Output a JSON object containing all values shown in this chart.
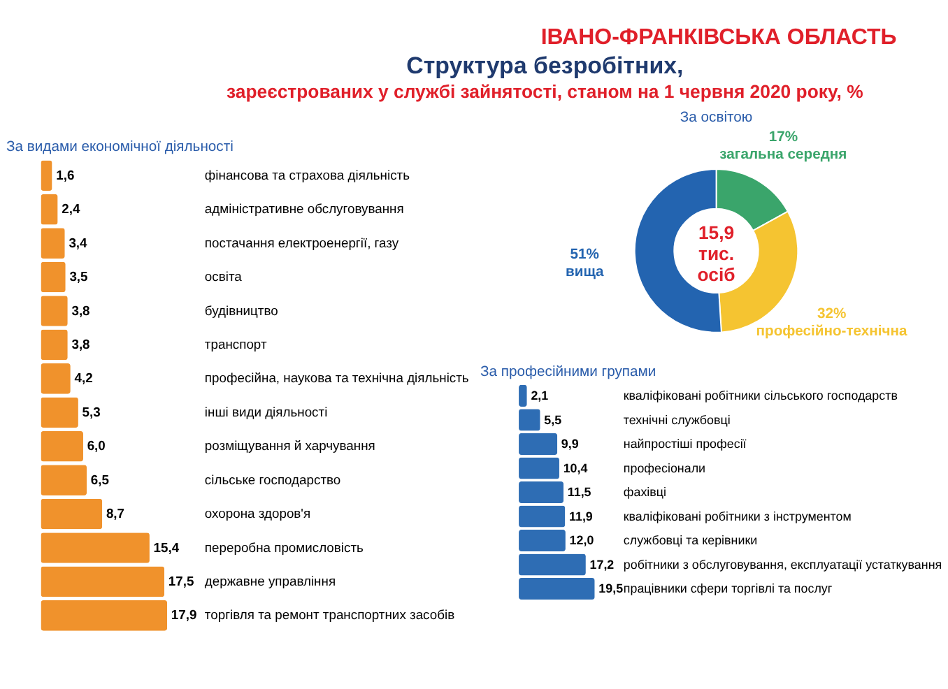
{
  "chart_data": [
    {
      "type": "other",
      "title": "Структура безробітних,",
      "subtitle": "зареєстрованих у службі зайнятості, станом на 1 червня 2020 року, %",
      "annotations": [
        "ІВАНО-ФРАНКІВСЬКА ОБЛАСТЬ"
      ]
    },
    {
      "type": "bar",
      "orientation": "horizontal",
      "title": "За видами економічної діяльності",
      "color": "#f0922c",
      "categories": [
        "фінансова та страхова діяльність",
        "адміністративне обслуговування",
        "постачання електроенергії, газу",
        "освіта",
        "будівництво",
        "транспорт",
        "професійна, наукова та технічна діяльність",
        "інші види діяльності",
        "розміщування й харчування",
        "сільське господарство",
        "охорона здоров'я",
        "переробна промисловість",
        "державне управління",
        "торгівля та ремонт транспортних засобів"
      ],
      "values": [
        1.6,
        2.4,
        3.4,
        3.5,
        3.8,
        3.8,
        4.2,
        5.3,
        6.0,
        6.5,
        8.7,
        15.4,
        17.5,
        17.9
      ],
      "value_labels": [
        "1,6",
        "2,4",
        "3,4",
        "3,5",
        "3,8",
        "3,8",
        "4,2",
        "5,3",
        "6,0",
        "6,5",
        "8,7",
        "15,4",
        "17,5",
        "17,9"
      ]
    },
    {
      "type": "donut",
      "title": "За освітою",
      "categories": [
        "загальна середня",
        "професійно-технічна",
        "вища"
      ],
      "values": [
        17,
        32,
        51
      ],
      "colors": [
        "#3aa56b",
        "#f5c431",
        "#2364b0"
      ],
      "value_labels": [
        "17%",
        "32%",
        "51%"
      ],
      "annotations": [
        "15,9 тис. осіб"
      ]
    },
    {
      "type": "bar",
      "orientation": "horizontal",
      "title": "За професійними групами",
      "color": "#2e6db4",
      "categories": [
        "кваліфіковані робітники сільського господарств",
        "технічні службовці",
        "найпростіші професії",
        "професіонали",
        "фахівці",
        "кваліфіковані робітники з інструментом",
        "службовці та керівники",
        "робітники з обслуговування, експлуатації устаткування",
        "працівники сфери торгівлі та послуг"
      ],
      "values": [
        2.1,
        5.5,
        9.9,
        10.4,
        11.5,
        11.9,
        12.0,
        17.2,
        19.5
      ],
      "value_labels": [
        "2,1",
        "5,5",
        "9,9",
        "10,4",
        "11,5",
        "11,9",
        "12,0",
        "17,2",
        "19,5"
      ]
    }
  ]
}
